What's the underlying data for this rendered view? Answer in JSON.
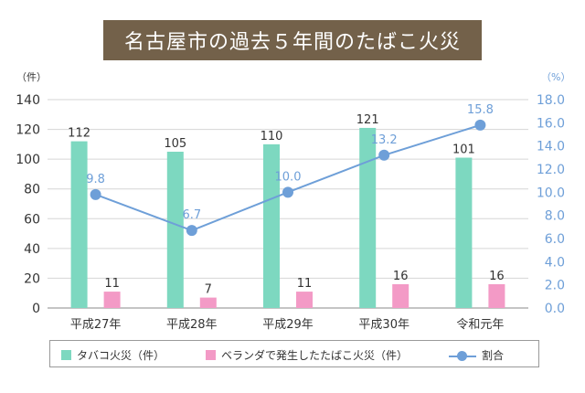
{
  "title": "名古屋市の過去５年間のたばこ火災",
  "colors": {
    "banner": "#73614a",
    "bar_tobacco": "#7dd8c0",
    "bar_veranda": "#f39ac6",
    "line": "#6e9fd8",
    "axis_left_text": "#333333",
    "axis_right_text": "#6e9fd8"
  },
  "chart_data": {
    "type": "bar+line",
    "categories": [
      "平成27年",
      "平成28年",
      "平成29年",
      "平成30年",
      "令和元年"
    ],
    "series": [
      {
        "name": "タバコ火災（件）",
        "type": "bar",
        "axis": "left",
        "values": [
          112,
          105,
          110,
          121,
          101
        ]
      },
      {
        "name": "ベランダで発生したたばこ火災（件）",
        "type": "bar",
        "axis": "left",
        "values": [
          11,
          7,
          11,
          16,
          16
        ]
      },
      {
        "name": "割合",
        "type": "line",
        "axis": "right",
        "values": [
          9.8,
          6.7,
          10.0,
          13.2,
          15.8
        ]
      }
    ],
    "y_left": {
      "unit": "（件）",
      "range": [
        0,
        140
      ],
      "ticks": [
        0,
        20,
        40,
        60,
        80,
        100,
        120,
        140
      ],
      "tick_labels": [
        "0",
        "20",
        "40",
        "60",
        "80",
        "100",
        "120",
        "140"
      ]
    },
    "y_right": {
      "unit": "（%）",
      "range": [
        0,
        18
      ],
      "ticks": [
        0,
        2,
        4,
        6,
        8,
        10,
        12,
        14,
        16,
        18
      ],
      "tick_labels": [
        "0.0",
        "2.0",
        "4.0",
        "6.0",
        "8.0",
        "10.0",
        "12.0",
        "14.0",
        "16.0",
        "18.0"
      ]
    },
    "bar1_labels": [
      "112",
      "105",
      "110",
      "121",
      "101"
    ],
    "bar2_labels": [
      "11",
      "7",
      "11",
      "16",
      "16"
    ],
    "line_labels": [
      "9.8",
      "6.7",
      "10.0",
      "13.2",
      "15.8"
    ],
    "grid": true,
    "legend_position": "bottom"
  },
  "legend": {
    "tobacco": "タバコ火災（件）",
    "veranda": "ベランダで発生したたばこ火災（件）",
    "ratio": "割合"
  }
}
